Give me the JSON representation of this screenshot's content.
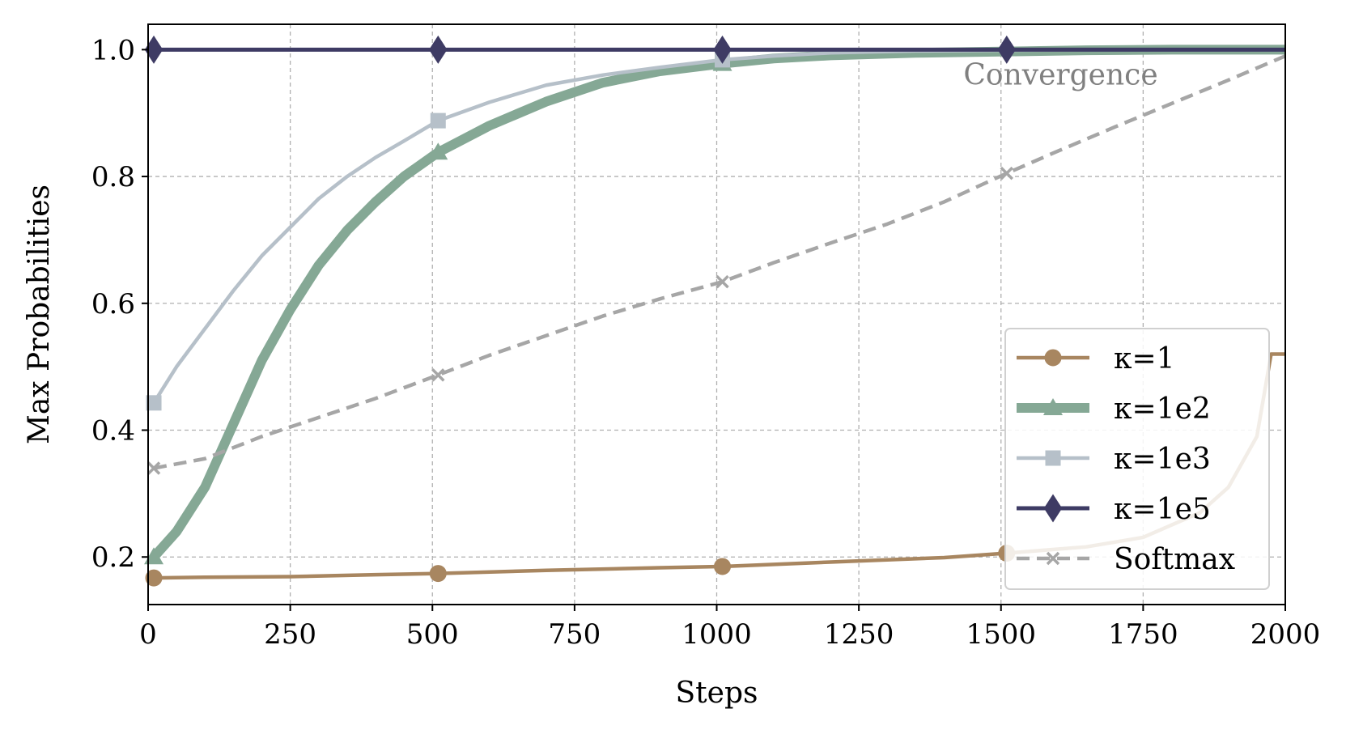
{
  "chart_data": {
    "type": "line",
    "title": "",
    "xlabel": "Steps",
    "ylabel": "Max Probabilities",
    "xlim": [
      0,
      2000
    ],
    "ylim": [
      0.125,
      1.04
    ],
    "xticks": [
      0,
      250,
      500,
      750,
      1000,
      1250,
      1500,
      1750,
      2000
    ],
    "yticks": [
      0.2,
      0.4,
      0.6,
      0.8,
      1.0
    ],
    "xtick_labels": [
      "0",
      "250",
      "500",
      "750",
      "1000",
      "1250",
      "1500",
      "1750",
      "2000"
    ],
    "ytick_labels": [
      "0.2",
      "0.4",
      "0.6",
      "0.8",
      "1.0"
    ],
    "grid": true,
    "legend": "lower-right",
    "annotation": "Convergence",
    "series": [
      {
        "name": "κ=1",
        "color": "#a88660",
        "marker": "circle",
        "dash": "solid",
        "x": [
          10,
          100,
          250,
          400,
          510,
          700,
          900,
          1010,
          1200,
          1400,
          1510,
          1650,
          1750,
          1850,
          1900,
          1950,
          1975,
          2000
        ],
        "y": [
          0.167,
          0.168,
          0.169,
          0.172,
          0.174,
          0.179,
          0.183,
          0.185,
          0.192,
          0.199,
          0.206,
          0.216,
          0.231,
          0.27,
          0.31,
          0.39,
          0.52,
          0.52
        ]
      },
      {
        "name": "κ=1e2",
        "color": "#85a895",
        "marker": "triangle",
        "dash": "solid",
        "x": [
          10,
          50,
          100,
          150,
          200,
          250,
          300,
          350,
          400,
          450,
          510,
          600,
          700,
          800,
          900,
          1010,
          1100,
          1200,
          1350,
          1500,
          1650,
          1800,
          2000
        ],
        "y": [
          0.2,
          0.24,
          0.31,
          0.41,
          0.51,
          0.59,
          0.66,
          0.715,
          0.76,
          0.8,
          0.838,
          0.88,
          0.918,
          0.948,
          0.966,
          0.978,
          0.986,
          0.991,
          0.995,
          0.997,
          0.999,
          1.0,
          1.0
        ]
      },
      {
        "name": "κ=1e3",
        "color": "#b6c0c9",
        "marker": "square",
        "dash": "solid",
        "x": [
          10,
          50,
          100,
          150,
          200,
          250,
          300,
          350,
          400,
          450,
          510,
          600,
          700,
          800,
          900,
          1010,
          1100,
          1200,
          1350,
          1500,
          1650,
          2000
        ],
        "y": [
          0.443,
          0.5,
          0.56,
          0.62,
          0.675,
          0.72,
          0.765,
          0.8,
          0.83,
          0.856,
          0.888,
          0.917,
          0.944,
          0.96,
          0.972,
          0.984,
          0.99,
          0.995,
          0.998,
          0.999,
          1.0,
          1.0
        ]
      },
      {
        "name": "κ=1e5",
        "color": "#3e3b64",
        "marker": "diamond",
        "dash": "solid",
        "x": [
          10,
          510,
          1010,
          1510,
          2000
        ],
        "y": [
          1.0,
          1.0,
          1.0,
          1.0,
          1.0
        ]
      },
      {
        "name": "Softmax",
        "color": "#a6a6a6",
        "marker": "x",
        "dash": "dashed",
        "x": [
          10,
          100,
          200,
          300,
          400,
          510,
          600,
          700,
          800,
          900,
          1010,
          1100,
          1200,
          1300,
          1400,
          1510,
          1600,
          1700,
          1800,
          1900,
          2000
        ],
        "y": [
          0.34,
          0.355,
          0.39,
          0.42,
          0.45,
          0.487,
          0.518,
          0.549,
          0.58,
          0.607,
          0.634,
          0.664,
          0.695,
          0.725,
          0.76,
          0.805,
          0.84,
          0.878,
          0.915,
          0.952,
          0.99
        ]
      }
    ]
  }
}
